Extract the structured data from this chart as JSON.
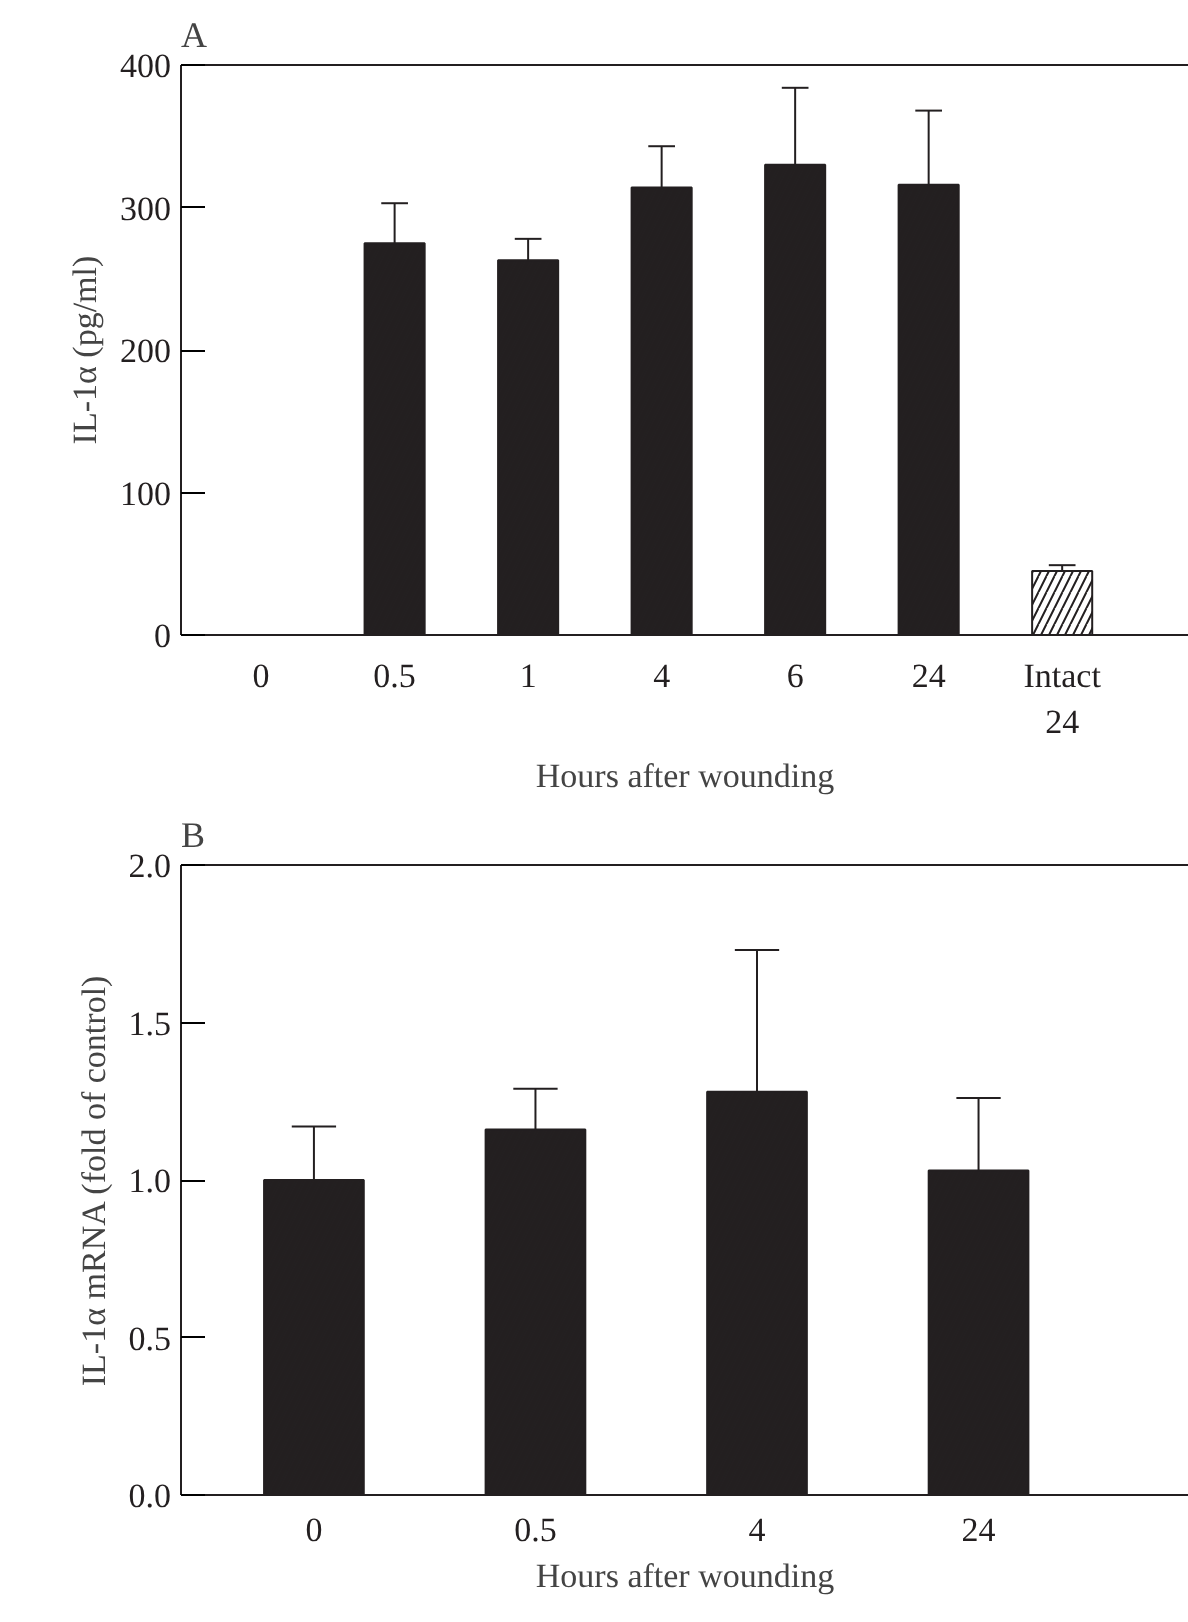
{
  "chart_data": [
    {
      "type": "bar",
      "title": "A",
      "xlabel": "Hours after wounding",
      "ylabel": "IL-1α (pg/ml)",
      "categories": [
        "0",
        "0.5",
        "1",
        "4",
        "6",
        "24",
        "Intact\n24"
      ],
      "values": [
        0,
        275,
        263,
        314,
        330,
        316,
        45
      ],
      "colors": [
        "#231f20",
        "#231f20",
        "#231f20",
        "#231f20",
        "#231f20",
        "#231f20",
        "#ffffff"
      ],
      "errors": [
        null,
        [
          275,
          303
        ],
        [
          263,
          278
        ],
        [
          314,
          343
        ],
        [
          330,
          384
        ],
        [
          316,
          368
        ],
        [
          45,
          49
        ]
      ],
      "ylim": [
        0,
        400
      ],
      "yticks": [
        0,
        100,
        200,
        300,
        400
      ],
      "grid": false
    },
    {
      "type": "bar",
      "title": "B",
      "xlabel": "Hours after wounding",
      "ylabel": "IL-1α mRNA (fold of control)",
      "categories": [
        "0",
        "0.5",
        "4",
        "24"
      ],
      "values": [
        1.0,
        1.16,
        1.28,
        1.03
      ],
      "colors": [
        "#231f20",
        "#231f20",
        "#231f20",
        "#231f20"
      ],
      "errors": [
        [
          1.0,
          1.17
        ],
        [
          1.16,
          1.29
        ],
        [
          1.28,
          1.73
        ],
        [
          1.03,
          1.26
        ]
      ],
      "ylim": [
        0,
        2.0
      ],
      "yticks": [
        {
          "value": 0,
          "label": "0.0"
        },
        {
          "value": 0.5,
          "label": "0.5"
        },
        {
          "value": 1.0,
          "label": "1.0"
        },
        {
          "value": 1.5,
          "label": "1.5"
        },
        {
          "value": 2.0,
          "label": "2.0"
        }
      ],
      "grid": false
    }
  ]
}
